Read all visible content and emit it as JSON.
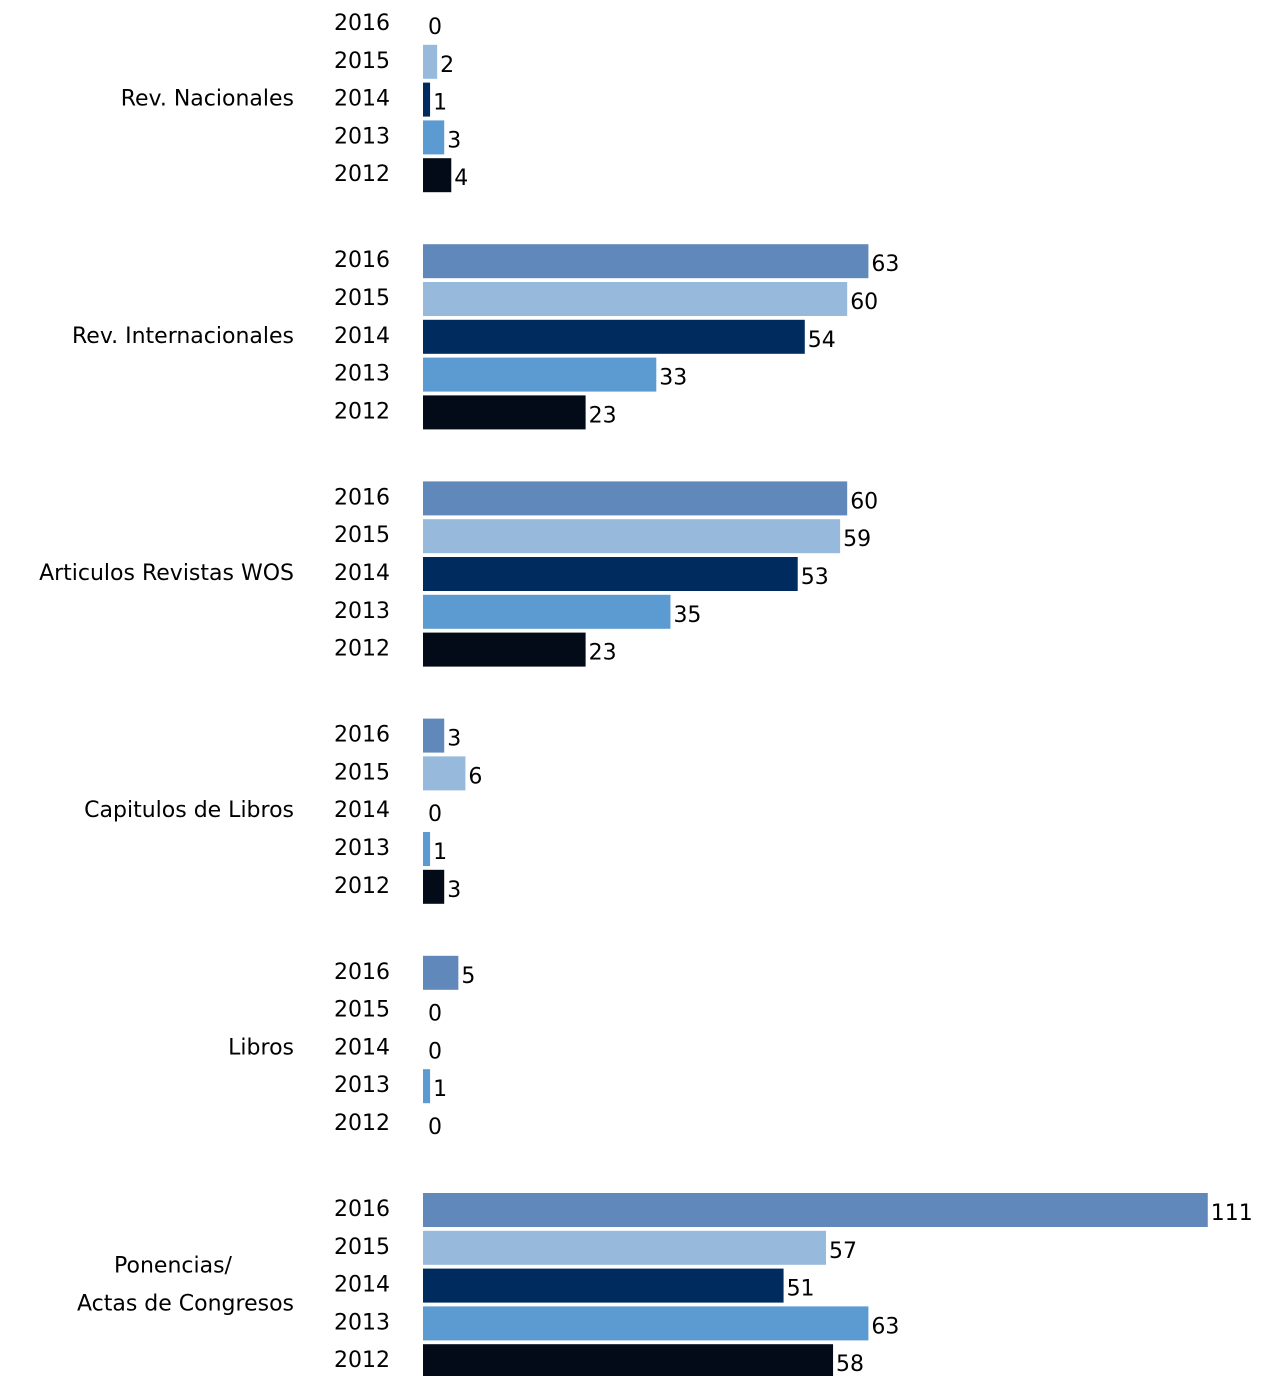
{
  "chart_data": {
    "type": "bar",
    "orientation": "horizontal",
    "categories": [
      "Rev. Nacionales",
      "Rev. Internacionales",
      "Articulos Revistas WOS",
      "Capitulos de Libros",
      "Libros",
      [
        "Ponencias/",
        "Actas de Congresos"
      ]
    ],
    "series": [
      {
        "name": "2016",
        "color": "#6088bb",
        "values": [
          0,
          63,
          60,
          3,
          5,
          111
        ]
      },
      {
        "name": "2015",
        "color": "#97b9dc",
        "values": [
          2,
          60,
          59,
          6,
          0,
          57
        ]
      },
      {
        "name": "2014",
        "color": "#002b5e",
        "values": [
          1,
          54,
          53,
          0,
          0,
          51
        ]
      },
      {
        "name": "2013",
        "color": "#5b9bd1",
        "values": [
          3,
          33,
          35,
          1,
          1,
          63
        ]
      },
      {
        "name": "2012",
        "color": "#020b17",
        "values": [
          4,
          23,
          23,
          3,
          0,
          58
        ]
      }
    ]
  }
}
